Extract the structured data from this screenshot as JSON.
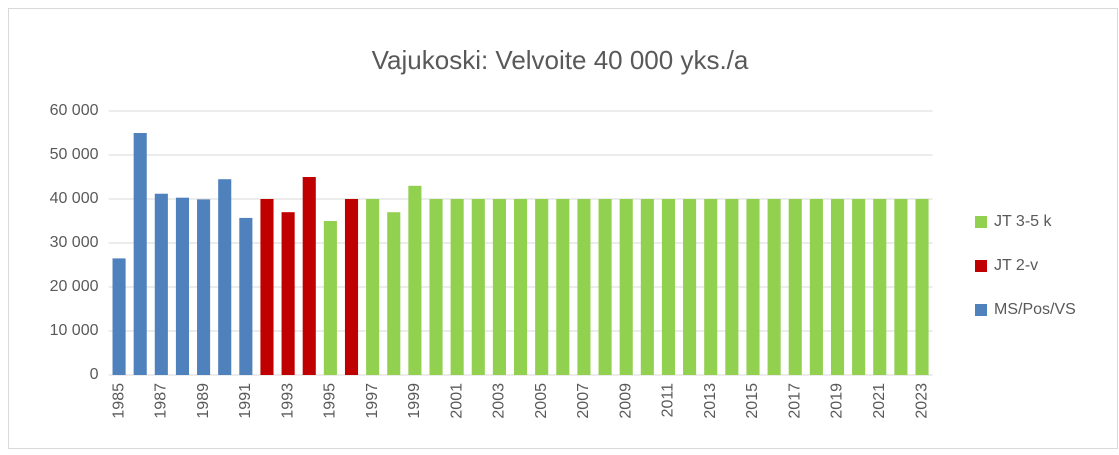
{
  "chart_data": {
    "type": "bar",
    "stacked": true,
    "title": "Vajukoski: Velvoite 40 000 yks./a",
    "categories": [
      "1985",
      null,
      "1987",
      null,
      "1989",
      null,
      "1991",
      null,
      "1993",
      null,
      "1995",
      null,
      "1997",
      null,
      "1999",
      null,
      "2001",
      null,
      "2003",
      null,
      "2005",
      null,
      "2007",
      null,
      "2009",
      null,
      "2011",
      null,
      "2013",
      null,
      "2015",
      null,
      "2017",
      null,
      "2019",
      null,
      "2021",
      null,
      "2023"
    ],
    "series": [
      {
        "name": "MS/Pos/VS",
        "color": "#4f81bd",
        "values": [
          26500,
          55000,
          41200,
          40300,
          39900,
          44500,
          35700,
          null,
          null,
          null,
          null,
          null,
          null,
          null,
          null,
          null,
          null,
          null,
          null,
          null,
          null,
          null,
          null,
          null,
          null,
          null,
          null,
          null,
          null,
          null,
          null,
          null,
          null,
          null,
          null,
          null,
          null,
          null,
          null
        ]
      },
      {
        "name": "JT 2-v",
        "color": "#c00000",
        "values": [
          null,
          null,
          null,
          null,
          null,
          null,
          null,
          40000,
          37000,
          45000,
          null,
          40000,
          null,
          null,
          null,
          null,
          null,
          null,
          null,
          null,
          null,
          null,
          null,
          null,
          null,
          null,
          null,
          null,
          null,
          null,
          null,
          null,
          null,
          null,
          null,
          null,
          null,
          null,
          null
        ]
      },
      {
        "name": "JT 3-5 k",
        "color": "#92d050",
        "values": [
          null,
          null,
          null,
          null,
          null,
          null,
          null,
          null,
          null,
          null,
          35000,
          null,
          40000,
          37000,
          43000,
          40000,
          40000,
          40000,
          40000,
          40000,
          40000,
          40000,
          40000,
          40000,
          40000,
          40000,
          40000,
          40000,
          40000,
          40000,
          40000,
          40000,
          40000,
          40000,
          40000,
          40000,
          40000,
          40000,
          40000
        ]
      }
    ],
    "ylim": [
      0,
      60000
    ],
    "yticks": [
      0,
      {
        "value": 10000,
        "label": "10 000"
      },
      {
        "value": 20000,
        "label": "20 000"
      },
      {
        "value": 30000,
        "label": "30 000"
      },
      {
        "value": 40000,
        "label": "40 000"
      },
      {
        "value": 50000,
        "label": "50 000"
      },
      {
        "value": 60000,
        "label": "60 000"
      }
    ],
    "grid": true,
    "legend": "right"
  }
}
